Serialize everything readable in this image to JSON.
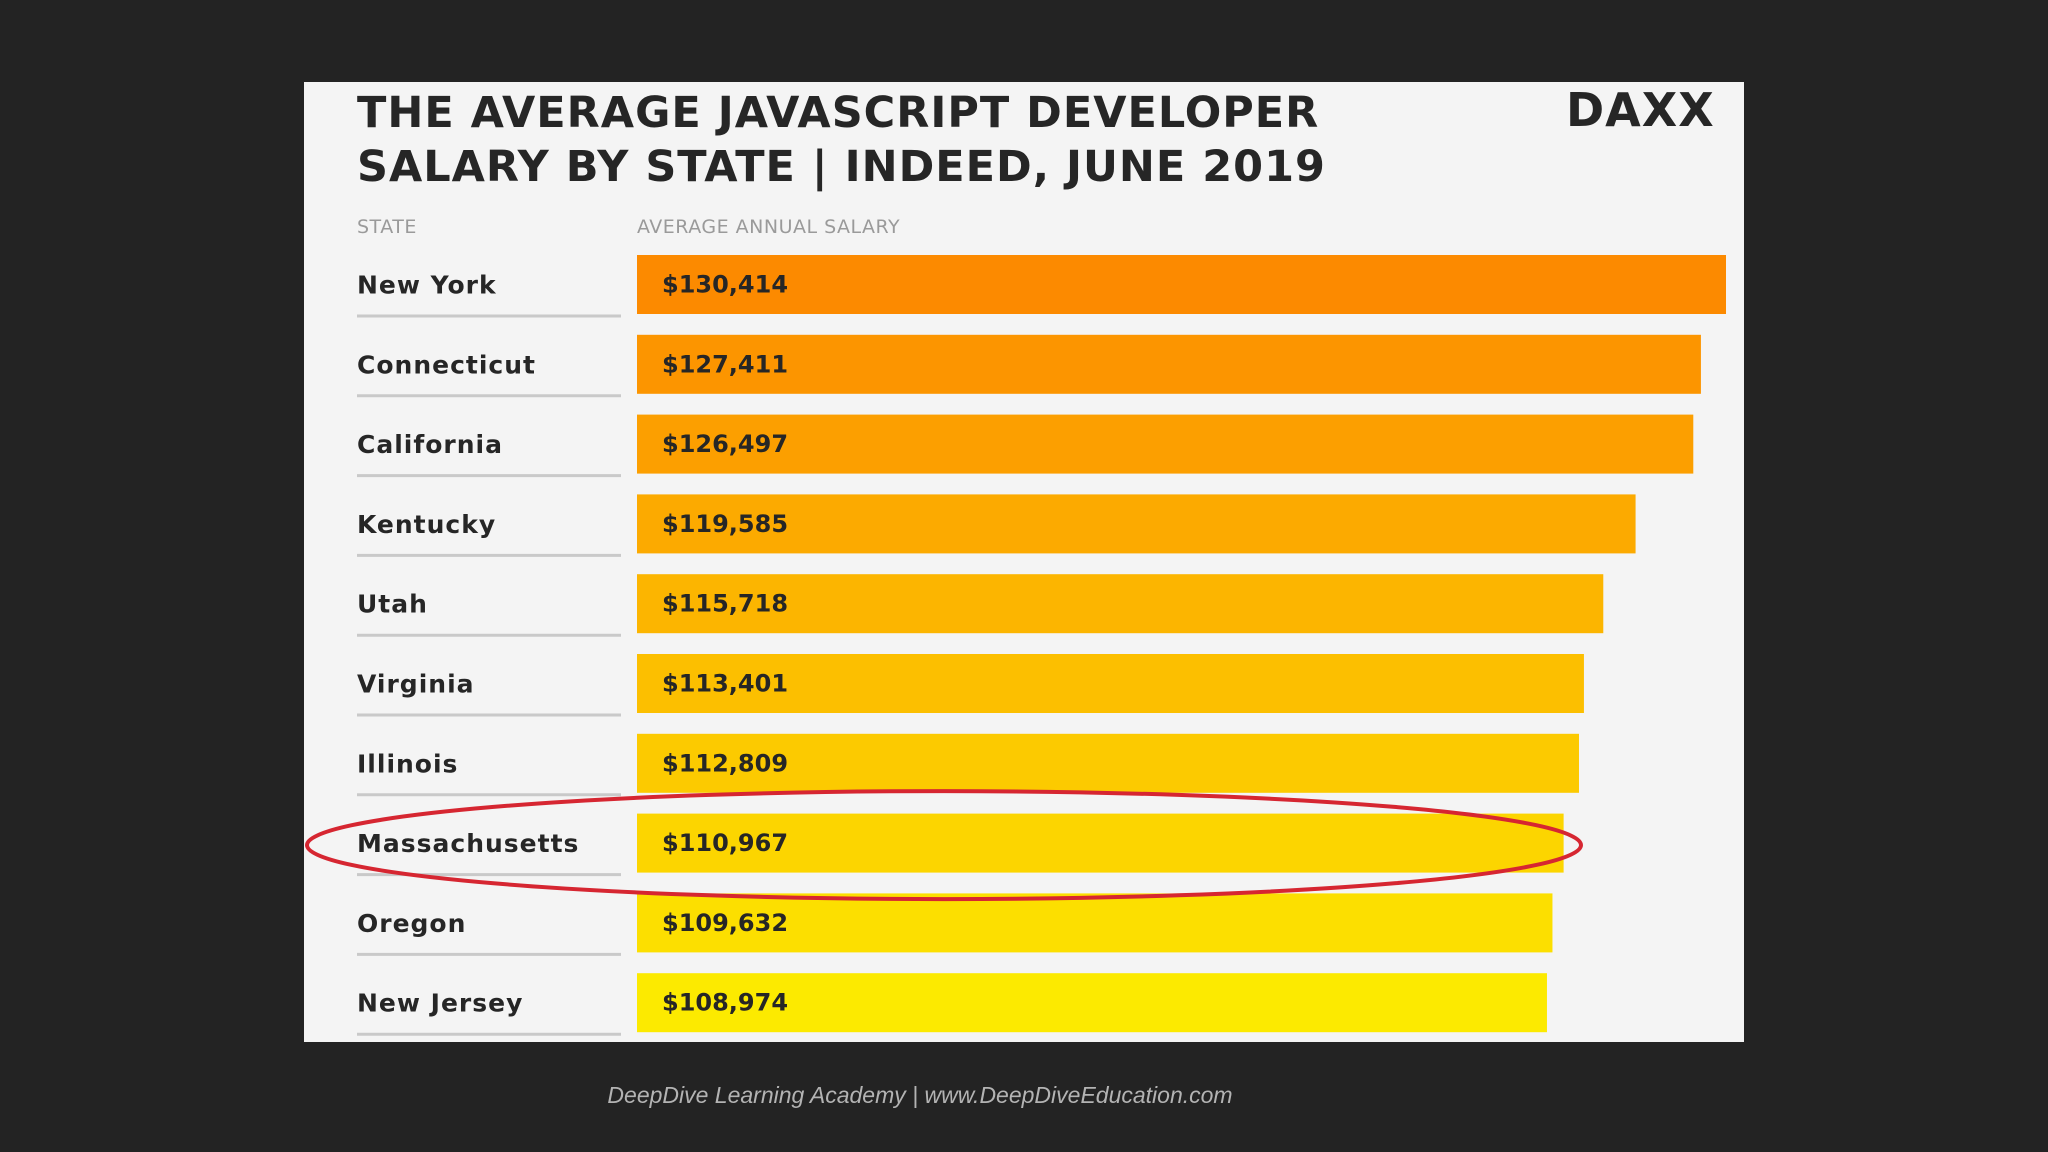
{
  "card": {
    "title_line1": "THE AVERAGE JAVASCRIPT DEVELOPER",
    "title_line2": "SALARY BY STATE | INDEED, JUNE 2019",
    "logo": "DAXX",
    "col_state": "STATE",
    "col_salary": "AVERAGE ANNUAL SALARY"
  },
  "footer": "DeepDive Learning Academy | www.DeepDiveEducation.com",
  "highlight": {
    "state": "Massachusetts",
    "color": "#d62631"
  },
  "colors": {
    "top": "#fc8a00",
    "bottom": "#fcea00",
    "text": "#262626",
    "divider": "#c9c9c9"
  },
  "chart_data": {
    "type": "bar",
    "orientation": "horizontal",
    "categories": [
      "New York",
      "Connecticut",
      "California",
      "Kentucky",
      "Utah",
      "Virginia",
      "Illinois",
      "Massachusetts",
      "Oregon",
      "New Jersey"
    ],
    "values": [
      130414,
      127411,
      126497,
      119585,
      115718,
      113401,
      112809,
      110967,
      109632,
      108974
    ],
    "value_labels": [
      "$130,414",
      "$127,411",
      "$126,497",
      "$119,585",
      "$115,718",
      "$113,401",
      "$112,809",
      "$110,967",
      "$109,632",
      "$108,974"
    ],
    "title": "THE AVERAGE JAVASCRIPT DEVELOPER SALARY BY STATE | INDEED, JUNE 2019",
    "xlabel": "AVERAGE ANNUAL SALARY",
    "ylabel": "STATE",
    "grid": false
  }
}
